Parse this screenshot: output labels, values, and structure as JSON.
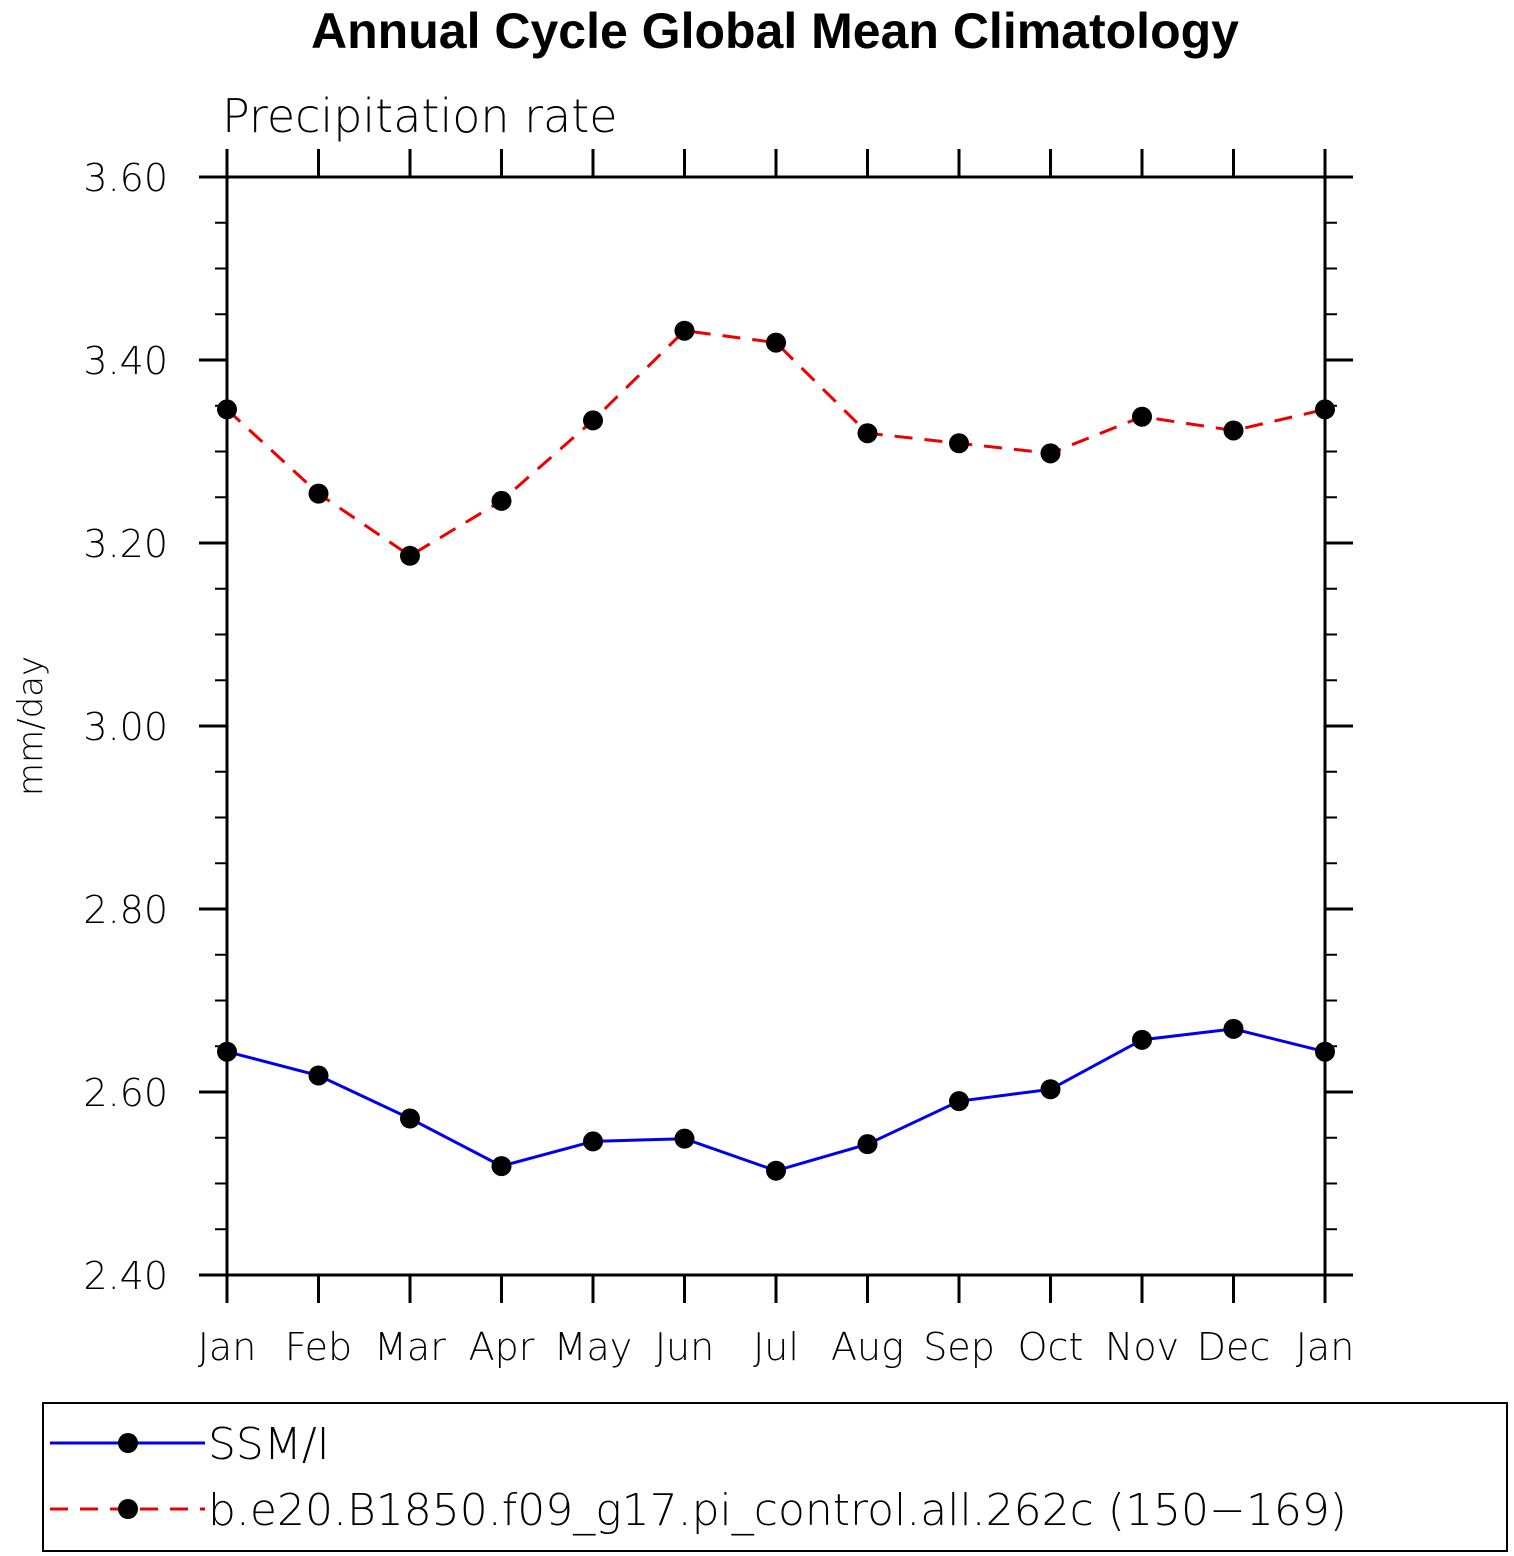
{
  "chart_data": {
    "type": "line",
    "title": "Annual Cycle Global Mean Climatology",
    "subtitle": "Precipitation rate",
    "xlabel": "",
    "ylabel": "mm/day",
    "categories": [
      "Jan",
      "Feb",
      "Mar",
      "Apr",
      "May",
      "Jun",
      "Jul",
      "Aug",
      "Sep",
      "Oct",
      "Nov",
      "Dec",
      "Jan"
    ],
    "ylim": [
      2.4,
      3.6
    ],
    "yticks": [
      2.4,
      2.6,
      2.8,
      3.0,
      3.2,
      3.4,
      3.6
    ],
    "ytick_labels": [
      "2.40",
      "2.60",
      "2.80",
      "3.00",
      "3.20",
      "3.40",
      "3.60"
    ],
    "grid": false,
    "legend_position": "bottom",
    "series": [
      {
        "name": "SSM/I",
        "color": "#0000ee",
        "line_style": "solid",
        "marker": "filled-circle",
        "values": [
          2.644,
          2.618,
          2.571,
          2.519,
          2.546,
          2.549,
          2.514,
          2.543,
          2.59,
          2.603,
          2.657,
          2.669,
          2.644
        ]
      },
      {
        "name": "b.e20.B1850.f09_g17.pi_control.all.262c (150−169)",
        "color": "#ee0000",
        "line_style": "dashed",
        "marker": "filled-circle",
        "values": [
          3.346,
          3.254,
          3.186,
          3.246,
          3.334,
          3.432,
          3.419,
          3.32,
          3.309,
          3.298,
          3.338,
          3.323,
          3.346
        ]
      }
    ]
  }
}
